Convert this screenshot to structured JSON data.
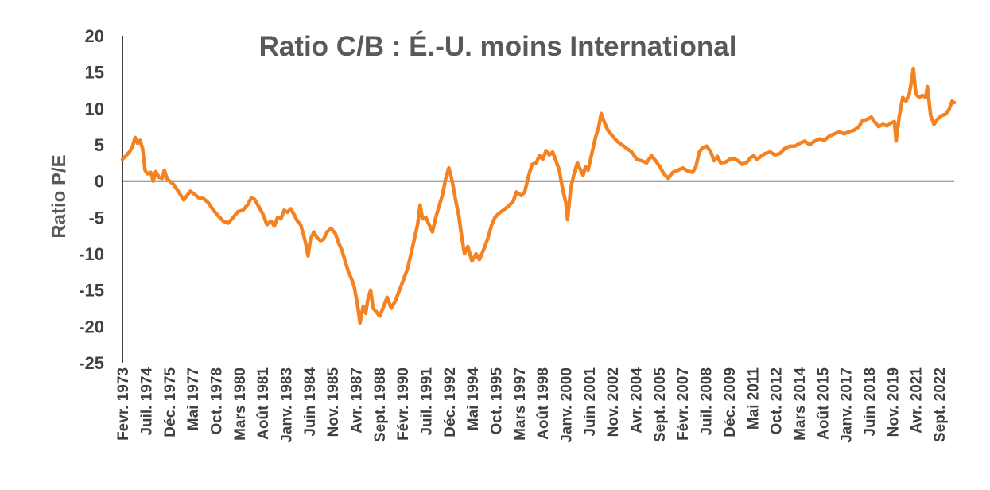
{
  "chart_data": {
    "type": "line",
    "title": "Ratio C/B : É.-U. moins International",
    "xlabel": "",
    "ylabel": "Ratio P/E",
    "ylim": [
      -25,
      20
    ],
    "yticks": [
      20,
      15,
      10,
      5,
      0,
      -5,
      -10,
      -15,
      -20,
      -25
    ],
    "ytick_labels": [
      "20",
      "15",
      "10",
      "5",
      "0",
      "-5",
      "-10",
      "-15",
      "-20",
      "-25"
    ],
    "x_range": [
      1973.08,
      2023.58
    ],
    "grid": false,
    "legend": "none",
    "x_tick_labels": [
      {
        "label": "Fevr. 1973",
        "x": 1973.08
      },
      {
        "label": "Juil. 1974",
        "x": 1974.5
      },
      {
        "label": "Déc. 1975",
        "x": 1975.92
      },
      {
        "label": "Mai 1977",
        "x": 1977.33
      },
      {
        "label": "Oct. 1978",
        "x": 1978.75
      },
      {
        "label": "Mars 1980",
        "x": 1980.17
      },
      {
        "label": "Août 1981",
        "x": 1981.58
      },
      {
        "label": "Janv. 1983",
        "x": 1983.0
      },
      {
        "label": "Juin 1984",
        "x": 1984.42
      },
      {
        "label": "Nov. 1985",
        "x": 1985.83
      },
      {
        "label": "Avr. 1987",
        "x": 1987.25
      },
      {
        "label": "Sept. 1988",
        "x": 1988.67
      },
      {
        "label": "Févr. 1990",
        "x": 1990.08
      },
      {
        "label": "Juil. 1991",
        "x": 1991.5
      },
      {
        "label": "Déc. 1992",
        "x": 1992.92
      },
      {
        "label": "Mai 1994",
        "x": 1994.33
      },
      {
        "label": "Oct. 1995",
        "x": 1995.75
      },
      {
        "label": "Mars 1997",
        "x": 1997.17
      },
      {
        "label": "Août 1998",
        "x": 1998.58
      },
      {
        "label": "Janv. 2000",
        "x": 2000.0
      },
      {
        "label": "Juin 2001",
        "x": 2001.42
      },
      {
        "label": "Nov. 2002",
        "x": 2002.83
      },
      {
        "label": "Avr. 2004",
        "x": 2004.25
      },
      {
        "label": "Sept. 2005",
        "x": 2005.67
      },
      {
        "label": "Févr. 2007",
        "x": 2007.08
      },
      {
        "label": "Juil. 2008",
        "x": 2008.5
      },
      {
        "label": "Déc. 2009",
        "x": 2009.92
      },
      {
        "label": "Mai 2011",
        "x": 2011.33
      },
      {
        "label": "Oct. 2012",
        "x": 2012.75
      },
      {
        "label": "Mars 2014",
        "x": 2014.17
      },
      {
        "label": "Août 2015",
        "x": 2015.58
      },
      {
        "label": "Janv. 2017",
        "x": 2017.0
      },
      {
        "label": "Juin 2018",
        "x": 2018.42
      },
      {
        "label": "Nov. 2019",
        "x": 2019.83
      },
      {
        "label": "Avr. 2021",
        "x": 2021.25
      },
      {
        "label": "Sept. 2022",
        "x": 2022.67
      }
    ],
    "series": [
      {
        "name": "Ratio P/E É.-U. moins International",
        "color": "#F58220",
        "points": [
          [
            1973.08,
            3.0
          ],
          [
            1973.3,
            3.5
          ],
          [
            1973.5,
            4.0
          ],
          [
            1973.7,
            4.8
          ],
          [
            1973.85,
            6.0
          ],
          [
            1974.0,
            5.2
          ],
          [
            1974.15,
            5.6
          ],
          [
            1974.3,
            4.5
          ],
          [
            1974.45,
            1.5
          ],
          [
            1974.6,
            1.0
          ],
          [
            1974.8,
            1.2
          ],
          [
            1974.95,
            0.0
          ],
          [
            1975.1,
            1.3
          ],
          [
            1975.3,
            0.5
          ],
          [
            1975.5,
            0.4
          ],
          [
            1975.62,
            1.5
          ],
          [
            1975.8,
            0.3
          ],
          [
            1975.95,
            0.0
          ],
          [
            1976.2,
            -0.5
          ],
          [
            1976.5,
            -1.5
          ],
          [
            1976.8,
            -2.6
          ],
          [
            1977.0,
            -2.0
          ],
          [
            1977.2,
            -1.4
          ],
          [
            1977.45,
            -1.8
          ],
          [
            1977.7,
            -2.3
          ],
          [
            1978.0,
            -2.4
          ],
          [
            1978.3,
            -3.0
          ],
          [
            1978.6,
            -4.0
          ],
          [
            1978.9,
            -4.8
          ],
          [
            1979.2,
            -5.5
          ],
          [
            1979.5,
            -5.8
          ],
          [
            1979.8,
            -5.0
          ],
          [
            1980.1,
            -4.2
          ],
          [
            1980.4,
            -4.0
          ],
          [
            1980.7,
            -3.2
          ],
          [
            1980.9,
            -2.3
          ],
          [
            1981.1,
            -2.5
          ],
          [
            1981.35,
            -3.5
          ],
          [
            1981.6,
            -4.5
          ],
          [
            1981.85,
            -6.0
          ],
          [
            1982.1,
            -5.5
          ],
          [
            1982.3,
            -6.2
          ],
          [
            1982.5,
            -5.0
          ],
          [
            1982.7,
            -5.2
          ],
          [
            1982.9,
            -4.0
          ],
          [
            1983.1,
            -4.3
          ],
          [
            1983.3,
            -3.8
          ],
          [
            1983.5,
            -4.6
          ],
          [
            1983.7,
            -5.5
          ],
          [
            1983.9,
            -6.0
          ],
          [
            1984.05,
            -7.2
          ],
          [
            1984.2,
            -8.5
          ],
          [
            1984.35,
            -10.3
          ],
          [
            1984.5,
            -8.0
          ],
          [
            1984.7,
            -7.0
          ],
          [
            1984.9,
            -7.8
          ],
          [
            1985.1,
            -8.2
          ],
          [
            1985.3,
            -8.0
          ],
          [
            1985.5,
            -7.0
          ],
          [
            1985.75,
            -6.5
          ],
          [
            1986.0,
            -7.2
          ],
          [
            1986.2,
            -8.5
          ],
          [
            1986.4,
            -9.5
          ],
          [
            1986.6,
            -11.0
          ],
          [
            1986.8,
            -12.5
          ],
          [
            1987.0,
            -13.5
          ],
          [
            1987.15,
            -14.5
          ],
          [
            1987.35,
            -17.0
          ],
          [
            1987.5,
            -19.5
          ],
          [
            1987.7,
            -17.2
          ],
          [
            1987.85,
            -18.2
          ],
          [
            1988.0,
            -16.0
          ],
          [
            1988.15,
            -15.0
          ],
          [
            1988.3,
            -17.5
          ],
          [
            1988.5,
            -18.0
          ],
          [
            1988.7,
            -18.6
          ],
          [
            1988.95,
            -17.2
          ],
          [
            1989.15,
            -16.0
          ],
          [
            1989.4,
            -17.5
          ],
          [
            1989.65,
            -16.5
          ],
          [
            1989.9,
            -15.0
          ],
          [
            1990.15,
            -13.5
          ],
          [
            1990.4,
            -12.0
          ],
          [
            1990.6,
            -10.0
          ],
          [
            1990.8,
            -8.0
          ],
          [
            1991.0,
            -6.0
          ],
          [
            1991.15,
            -3.3
          ],
          [
            1991.3,
            -5.2
          ],
          [
            1991.5,
            -5.0
          ],
          [
            1991.7,
            -6.0
          ],
          [
            1991.9,
            -7.0
          ],
          [
            1992.1,
            -5.0
          ],
          [
            1992.3,
            -3.5
          ],
          [
            1992.5,
            -2.0
          ],
          [
            1992.7,
            0.3
          ],
          [
            1992.9,
            1.8
          ],
          [
            1993.1,
            0.0
          ],
          [
            1993.3,
            -2.5
          ],
          [
            1993.5,
            -4.8
          ],
          [
            1993.7,
            -8.0
          ],
          [
            1993.85,
            -10.0
          ],
          [
            1994.05,
            -9.0
          ],
          [
            1994.3,
            -11.0
          ],
          [
            1994.55,
            -10.0
          ],
          [
            1994.75,
            -10.8
          ],
          [
            1995.0,
            -9.5
          ],
          [
            1995.25,
            -8.0
          ],
          [
            1995.5,
            -6.0
          ],
          [
            1995.7,
            -5.0
          ],
          [
            1995.9,
            -4.5
          ],
          [
            1996.2,
            -4.0
          ],
          [
            1996.5,
            -3.5
          ],
          [
            1996.8,
            -2.8
          ],
          [
            1997.0,
            -1.5
          ],
          [
            1997.3,
            -2.0
          ],
          [
            1997.5,
            -1.5
          ],
          [
            1997.75,
            0.8
          ],
          [
            1997.95,
            2.3
          ],
          [
            1998.2,
            2.5
          ],
          [
            1998.4,
            3.5
          ],
          [
            1998.6,
            3.0
          ],
          [
            1998.8,
            4.2
          ],
          [
            1999.0,
            3.6
          ],
          [
            1999.2,
            4.0
          ],
          [
            1999.4,
            2.8
          ],
          [
            1999.6,
            1.5
          ],
          [
            1999.8,
            -1.0
          ],
          [
            2000.0,
            -3.0
          ],
          [
            2000.1,
            -5.3
          ],
          [
            2000.3,
            -1.0
          ],
          [
            2000.5,
            1.0
          ],
          [
            2000.7,
            2.5
          ],
          [
            2000.9,
            1.5
          ],
          [
            2001.05,
            0.8
          ],
          [
            2001.2,
            2.0
          ],
          [
            2001.35,
            1.5
          ],
          [
            2001.6,
            4.0
          ],
          [
            2001.8,
            6.0
          ],
          [
            2002.0,
            7.5
          ],
          [
            2002.15,
            9.3
          ],
          [
            2002.35,
            8.0
          ],
          [
            2002.55,
            7.0
          ],
          [
            2002.8,
            6.3
          ],
          [
            2003.1,
            5.5
          ],
          [
            2003.4,
            5.0
          ],
          [
            2003.7,
            4.5
          ],
          [
            2004.0,
            4.0
          ],
          [
            2004.3,
            3.0
          ],
          [
            2004.6,
            2.8
          ],
          [
            2004.9,
            2.5
          ],
          [
            2005.2,
            3.5
          ],
          [
            2005.45,
            2.8
          ],
          [
            2005.7,
            2.0
          ],
          [
            2005.95,
            1.0
          ],
          [
            2006.2,
            0.4
          ],
          [
            2006.5,
            1.2
          ],
          [
            2006.8,
            1.5
          ],
          [
            2007.1,
            1.8
          ],
          [
            2007.4,
            1.4
          ],
          [
            2007.7,
            1.2
          ],
          [
            2007.9,
            2.0
          ],
          [
            2008.1,
            4.0
          ],
          [
            2008.3,
            4.6
          ],
          [
            2008.55,
            4.8
          ],
          [
            2008.8,
            4.0
          ],
          [
            2009.0,
            2.8
          ],
          [
            2009.2,
            3.4
          ],
          [
            2009.4,
            2.5
          ],
          [
            2009.7,
            2.6
          ],
          [
            2009.95,
            3.0
          ],
          [
            2010.2,
            3.1
          ],
          [
            2010.45,
            2.8
          ],
          [
            2010.7,
            2.3
          ],
          [
            2011.0,
            2.6
          ],
          [
            2011.2,
            3.2
          ],
          [
            2011.4,
            3.5
          ],
          [
            2011.6,
            3.0
          ],
          [
            2011.9,
            3.5
          ],
          [
            2012.1,
            3.8
          ],
          [
            2012.4,
            4.0
          ],
          [
            2012.7,
            3.6
          ],
          [
            2013.0,
            3.8
          ],
          [
            2013.3,
            4.5
          ],
          [
            2013.6,
            4.8
          ],
          [
            2013.9,
            4.8
          ],
          [
            2014.2,
            5.2
          ],
          [
            2014.5,
            5.5
          ],
          [
            2014.8,
            5.0
          ],
          [
            2015.1,
            5.5
          ],
          [
            2015.4,
            5.8
          ],
          [
            2015.7,
            5.6
          ],
          [
            2016.0,
            6.2
          ],
          [
            2016.3,
            6.5
          ],
          [
            2016.6,
            6.8
          ],
          [
            2016.9,
            6.5
          ],
          [
            2017.2,
            6.8
          ],
          [
            2017.5,
            7.0
          ],
          [
            2017.8,
            7.5
          ],
          [
            2018.0,
            8.3
          ],
          [
            2018.3,
            8.5
          ],
          [
            2018.55,
            8.8
          ],
          [
            2018.8,
            8.0
          ],
          [
            2019.0,
            7.5
          ],
          [
            2019.25,
            7.8
          ],
          [
            2019.5,
            7.6
          ],
          [
            2019.75,
            8.0
          ],
          [
            2019.95,
            8.2
          ],
          [
            2020.05,
            5.5
          ],
          [
            2020.25,
            9.0
          ],
          [
            2020.45,
            11.5
          ],
          [
            2020.65,
            11.0
          ],
          [
            2020.85,
            12.0
          ],
          [
            2021.0,
            14.0
          ],
          [
            2021.1,
            15.5
          ],
          [
            2021.25,
            12.0
          ],
          [
            2021.45,
            11.5
          ],
          [
            2021.65,
            11.8
          ],
          [
            2021.85,
            11.5
          ],
          [
            2021.95,
            13.0
          ],
          [
            2022.15,
            9.0
          ],
          [
            2022.35,
            7.8
          ],
          [
            2022.55,
            8.5
          ],
          [
            2022.8,
            9.0
          ],
          [
            2023.05,
            9.2
          ],
          [
            2023.25,
            9.8
          ],
          [
            2023.45,
            11.0
          ],
          [
            2023.58,
            10.8
          ]
        ]
      }
    ]
  }
}
